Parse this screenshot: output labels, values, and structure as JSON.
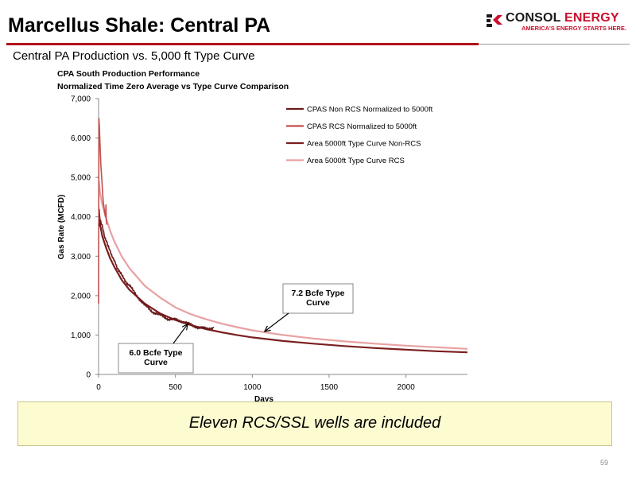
{
  "slide": {
    "title": "Marcellus Shale: Central PA",
    "subtitle": "Central PA Production vs. 5,000 ft Type Curve",
    "banner": "Eleven RCS/SSL wells are included",
    "page_number": "59"
  },
  "logo": {
    "name_part1": "CONSOL",
    "name_part2": "ENERGY",
    "tagline": "AMERICA'S ENERGY STARTS HERE."
  },
  "colors": {
    "title_rule": "#b3121b",
    "brand_red": "#c8102e",
    "banner_bg": "#fdfbd0"
  },
  "chart_data": {
    "type": "line",
    "title_lines": [
      "CPA South Production Performance",
      "Normalized Time Zero Average vs Type Curve Comparison"
    ],
    "xlabel": "Days",
    "ylabel": "Gas Rate (MCFD)",
    "xlim": [
      0,
      2400
    ],
    "ylim": [
      0,
      7000
    ],
    "x_ticks": [
      0,
      500,
      1000,
      1500,
      2000
    ],
    "x_tick_labels": [
      "0",
      "500",
      "1000",
      "1500",
      "2000"
    ],
    "y_ticks": [
      0,
      1000,
      2000,
      3000,
      4000,
      5000,
      6000,
      7000
    ],
    "y_tick_labels": [
      "0",
      "1,000",
      "2,000",
      "3,000",
      "4,000",
      "5,000",
      "6,000",
      "7,000"
    ],
    "legend_position": "top-right",
    "series": [
      {
        "name": "CPAS Non RCS Normalized to 5000ft",
        "color": "#6b1b1b",
        "width": 1.6,
        "points": [
          [
            2,
            3750
          ],
          [
            10,
            3950
          ],
          [
            20,
            3800
          ],
          [
            30,
            3650
          ],
          [
            40,
            3500
          ],
          [
            50,
            3400
          ],
          [
            60,
            3250
          ],
          [
            80,
            3100
          ],
          [
            100,
            2900
          ],
          [
            120,
            2700
          ],
          [
            150,
            2550
          ],
          [
            180,
            2350
          ],
          [
            200,
            2250
          ],
          [
            250,
            2000
          ],
          [
            300,
            1750
          ],
          [
            350,
            1600
          ],
          [
            400,
            1500
          ],
          [
            450,
            1420
          ],
          [
            500,
            1380
          ],
          [
            550,
            1350
          ],
          [
            600,
            1250
          ],
          [
            650,
            1200
          ],
          [
            700,
            1150
          ],
          [
            750,
            1200
          ]
        ],
        "noise": 50
      },
      {
        "name": "CPAS RCS Normalized to 5000ft",
        "color": "#c0504d",
        "width": 1.6,
        "points": [
          [
            0,
            1800
          ],
          [
            1,
            4000
          ],
          [
            2,
            6500
          ],
          [
            5,
            6300
          ],
          [
            10,
            5800
          ],
          [
            15,
            5300
          ],
          [
            20,
            5000
          ],
          [
            25,
            4700
          ],
          [
            30,
            4400
          ],
          [
            40,
            4100
          ],
          [
            45,
            4000
          ],
          [
            48,
            4300
          ],
          [
            50,
            3900
          ],
          [
            55,
            3800
          ]
        ],
        "noise": 0
      },
      {
        "name": "Area 5000ft Type Curve Non-RCS",
        "color": "#7a1f1f",
        "width": 2.2,
        "points": [
          [
            2,
            4200
          ],
          [
            10,
            3800
          ],
          [
            25,
            3500
          ],
          [
            50,
            3200
          ],
          [
            75,
            2950
          ],
          [
            100,
            2750
          ],
          [
            150,
            2400
          ],
          [
            200,
            2150
          ],
          [
            300,
            1800
          ],
          [
            400,
            1550
          ],
          [
            500,
            1380
          ],
          [
            600,
            1250
          ],
          [
            700,
            1150
          ],
          [
            800,
            1070
          ],
          [
            900,
            1000
          ],
          [
            1000,
            940
          ],
          [
            1200,
            850
          ],
          [
            1400,
            780
          ],
          [
            1600,
            720
          ],
          [
            1800,
            670
          ],
          [
            2000,
            630
          ],
          [
            2200,
            590
          ],
          [
            2400,
            560
          ]
        ],
        "noise": 0
      },
      {
        "name": "Area 5000ft Type Curve RCS",
        "color": "#e8a1a1",
        "width": 2.2,
        "points": [
          [
            2,
            4900
          ],
          [
            10,
            4600
          ],
          [
            25,
            4300
          ],
          [
            50,
            3950
          ],
          [
            75,
            3650
          ],
          [
            100,
            3400
          ],
          [
            150,
            3000
          ],
          [
            200,
            2700
          ],
          [
            300,
            2250
          ],
          [
            400,
            1950
          ],
          [
            500,
            1700
          ],
          [
            600,
            1530
          ],
          [
            700,
            1400
          ],
          [
            800,
            1290
          ],
          [
            900,
            1200
          ],
          [
            1000,
            1120
          ],
          [
            1200,
            1000
          ],
          [
            1400,
            910
          ],
          [
            1600,
            840
          ],
          [
            1800,
            780
          ],
          [
            2000,
            730
          ],
          [
            2200,
            690
          ],
          [
            2400,
            650
          ]
        ],
        "noise": 0
      }
    ],
    "annotations": [
      {
        "text_lines": [
          "7.2 Bcfe Type",
          "Curve"
        ],
        "arrow_to": [
          1080,
          1090
        ]
      },
      {
        "text_lines": [
          "6.0 Bcfe Type",
          "Curve"
        ],
        "arrow_to": [
          580,
          1280
        ]
      }
    ]
  }
}
